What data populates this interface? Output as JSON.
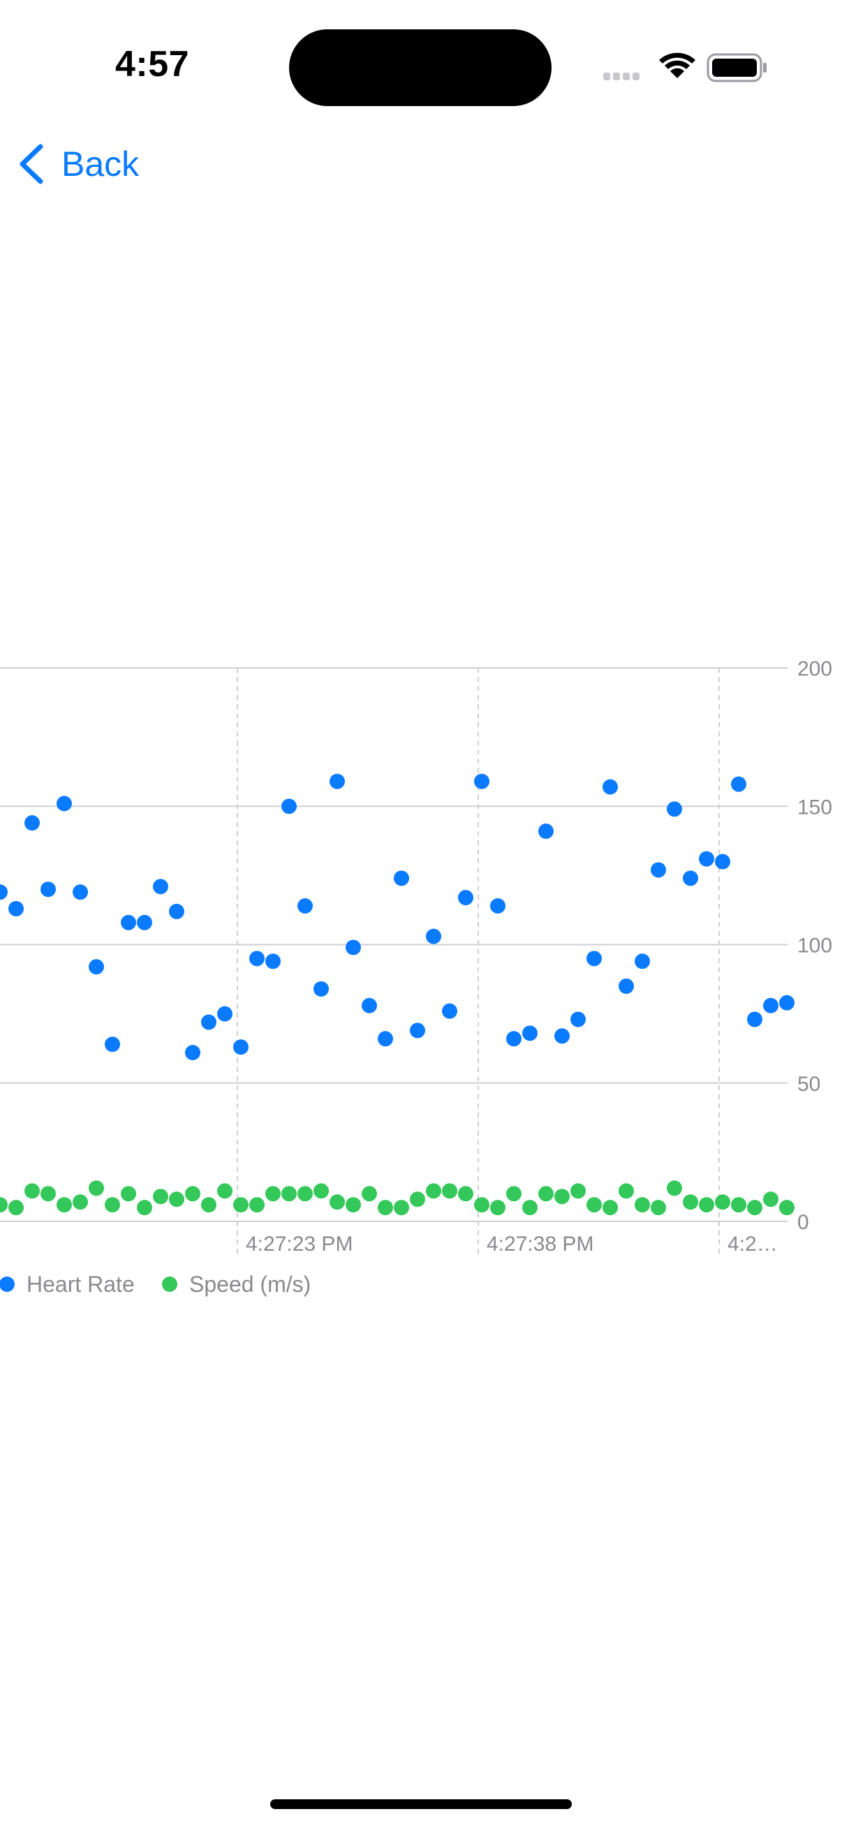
{
  "status_bar": {
    "time": "4:57",
    "icons": [
      "cellular-dots-icon",
      "wifi-icon",
      "battery-icon"
    ]
  },
  "nav": {
    "back_label": "Back",
    "back_icon": "chevron-left-icon",
    "accent_color": "#0a7aff"
  },
  "chart_data": {
    "type": "scatter",
    "title": "",
    "xlabel": "",
    "ylabel": "",
    "y_ticks": [
      0,
      50,
      100,
      150,
      200
    ],
    "ylim": [
      0,
      200
    ],
    "x_ticks": [
      "4:27:23 PM",
      "4:27:38 PM",
      "4:2…"
    ],
    "grid": true,
    "legend_position": "bottom-left",
    "series": [
      {
        "name": "Heart Rate",
        "color": "#0a7aff",
        "values": [
          119,
          113,
          144,
          120,
          151,
          119,
          92,
          64,
          108,
          108,
          121,
          112,
          61,
          72,
          75,
          63,
          95,
          94,
          150,
          114,
          84,
          159,
          99,
          78,
          66,
          124,
          69,
          103,
          76,
          117,
          159,
          114,
          66,
          68,
          141,
          67,
          73,
          95,
          157,
          85,
          94,
          127,
          149,
          124,
          131,
          130,
          158,
          73,
          78,
          79
        ]
      },
      {
        "name": "Speed (m/s)",
        "color": "#34c759",
        "values": [
          6,
          5,
          11,
          10,
          6,
          7,
          12,
          6,
          10,
          5,
          9,
          8,
          10,
          6,
          11,
          6,
          6,
          10,
          10,
          10,
          11,
          7,
          6,
          10,
          5,
          5,
          8,
          11,
          11,
          10,
          6,
          5,
          10,
          5,
          10,
          9,
          11,
          6,
          5,
          11,
          6,
          5,
          12,
          7,
          6,
          7,
          6,
          5,
          8,
          5
        ]
      }
    ]
  }
}
